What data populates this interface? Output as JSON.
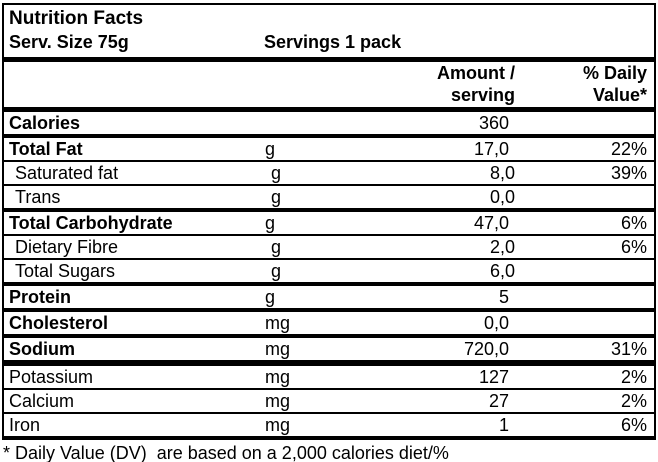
{
  "header": {
    "title": "Nutrition Facts",
    "serving_size": "Serv. Size 75g",
    "servings": "Servings 1 pack"
  },
  "columns": {
    "amount_line1": "Amount /",
    "amount_line2": "serving",
    "daily_line1": "% Daily",
    "daily_line2": "Value*"
  },
  "rows": [
    {
      "label": "Calories",
      "unit": "",
      "amount": "360",
      "daily": "",
      "bold": true,
      "indent": false,
      "top_border": "none"
    },
    {
      "label": "Total Fat",
      "unit": "g",
      "amount": "17,0",
      "daily": "22%",
      "bold": true,
      "indent": false,
      "top_border": "thick"
    },
    {
      "label": "Saturated fat",
      "unit": "g",
      "amount": "8,0",
      "daily": "39%",
      "bold": false,
      "indent": true,
      "top_border": "thin"
    },
    {
      "label": "Trans",
      "unit": "g",
      "amount": "0,0",
      "daily": "",
      "bold": false,
      "indent": true,
      "top_border": "thin"
    },
    {
      "label": "Total Carbohydrate",
      "unit": "g",
      "amount": "47,0",
      "daily": "6%",
      "bold": true,
      "indent": false,
      "top_border": "thick"
    },
    {
      "label": "Dietary Fibre",
      "unit": "g",
      "amount": "2,0",
      "daily": "6%",
      "bold": false,
      "indent": true,
      "top_border": "thin"
    },
    {
      "label": "Total Sugars",
      "unit": "g",
      "amount": "6,0",
      "daily": "",
      "bold": false,
      "indent": true,
      "top_border": "thin"
    },
    {
      "label": "Protein",
      "unit": "g",
      "amount": "5",
      "daily": "",
      "bold": true,
      "indent": false,
      "top_border": "thick"
    },
    {
      "label": "Cholesterol",
      "unit": "mg",
      "amount": "0,0",
      "daily": "",
      "bold": true,
      "indent": false,
      "top_border": "thick"
    },
    {
      "label": "Sodium",
      "unit": "mg",
      "amount": "720,0",
      "daily": "31%",
      "bold": true,
      "indent": false,
      "top_border": "thick"
    },
    {
      "label": "Potassium",
      "unit": "mg",
      "amount": "127",
      "daily": "2%",
      "bold": false,
      "indent": false,
      "top_border": "xl"
    },
    {
      "label": "Calcium",
      "unit": "mg",
      "amount": "27",
      "daily": "2%",
      "bold": false,
      "indent": false,
      "top_border": "thin"
    },
    {
      "label": "Iron",
      "unit": "mg",
      "amount": "1",
      "daily": "6%",
      "bold": false,
      "indent": false,
      "top_border": "thin"
    }
  ],
  "footnote": "* Daily Value (DV)  are based on a 2,000 calories diet/%",
  "colors": {
    "text": "#000000",
    "background": "#ffffff",
    "border": "#000000"
  }
}
